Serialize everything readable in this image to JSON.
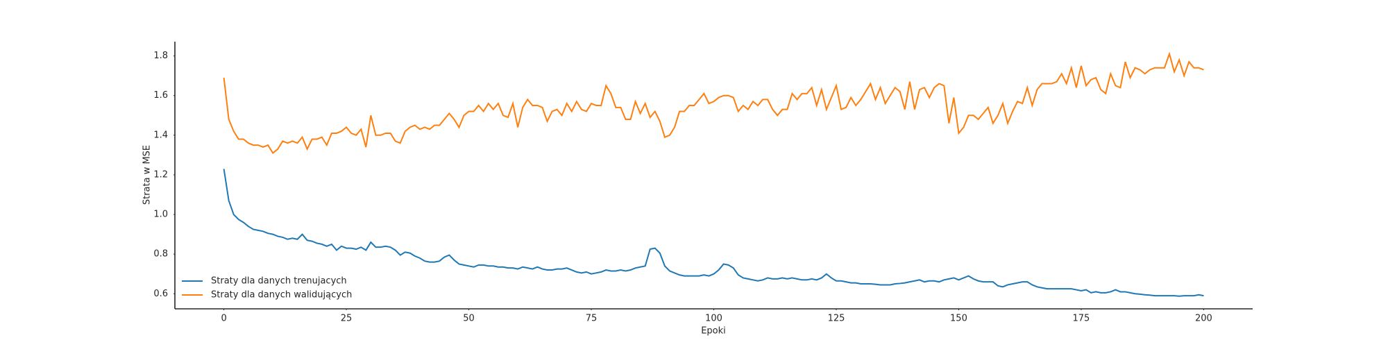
{
  "chart_data": {
    "type": "line",
    "xlabel": "Epoki",
    "ylabel": "Strata w MSE",
    "x": [
      0,
      1,
      2,
      3,
      4,
      5,
      6,
      7,
      8,
      9,
      10,
      11,
      12,
      13,
      14,
      15,
      16,
      17,
      18,
      19,
      20,
      21,
      22,
      23,
      24,
      25,
      26,
      27,
      28,
      29,
      30,
      31,
      32,
      33,
      34,
      35,
      36,
      37,
      38,
      39,
      40,
      41,
      42,
      43,
      44,
      45,
      46,
      47,
      48,
      49,
      50,
      51,
      52,
      53,
      54,
      55,
      56,
      57,
      58,
      59,
      60,
      61,
      62,
      63,
      64,
      65,
      66,
      67,
      68,
      69,
      70,
      71,
      72,
      73,
      74,
      75,
      76,
      77,
      78,
      79,
      80,
      81,
      82,
      83,
      84,
      85,
      86,
      87,
      88,
      89,
      90,
      91,
      92,
      93,
      94,
      95,
      96,
      97,
      98,
      99,
      100,
      101,
      102,
      103,
      104,
      105,
      106,
      107,
      108,
      109,
      110,
      111,
      112,
      113,
      114,
      115,
      116,
      117,
      118,
      119,
      120,
      121,
      122,
      123,
      124,
      125,
      126,
      127,
      128,
      129,
      130,
      131,
      132,
      133,
      134,
      135,
      136,
      137,
      138,
      139,
      140,
      141,
      142,
      143,
      144,
      145,
      146,
      147,
      148,
      149,
      150,
      151,
      152,
      153,
      154,
      155,
      156,
      157,
      158,
      159,
      160,
      161,
      162,
      163,
      164,
      165,
      166,
      167,
      168,
      169,
      170,
      171,
      172,
      173,
      174,
      175,
      176,
      177,
      178,
      179,
      180,
      181,
      182,
      183,
      184,
      185,
      186,
      187,
      188,
      189,
      190,
      191,
      192,
      193,
      194,
      195,
      196,
      197,
      198,
      199,
      200
    ],
    "series": [
      {
        "name": "Straty dla danych trenujacych",
        "color": "#1f77b4",
        "values": [
          1.23,
          1.07,
          1.0,
          0.975,
          0.96,
          0.94,
          0.925,
          0.92,
          0.915,
          0.905,
          0.9,
          0.89,
          0.885,
          0.875,
          0.88,
          0.875,
          0.9,
          0.87,
          0.865,
          0.855,
          0.85,
          0.84,
          0.85,
          0.82,
          0.84,
          0.83,
          0.83,
          0.825,
          0.835,
          0.82,
          0.86,
          0.835,
          0.835,
          0.84,
          0.835,
          0.82,
          0.795,
          0.81,
          0.805,
          0.79,
          0.78,
          0.765,
          0.76,
          0.76,
          0.765,
          0.785,
          0.795,
          0.77,
          0.75,
          0.745,
          0.74,
          0.735,
          0.745,
          0.745,
          0.74,
          0.74,
          0.735,
          0.735,
          0.73,
          0.73,
          0.725,
          0.735,
          0.73,
          0.725,
          0.735,
          0.725,
          0.72,
          0.72,
          0.725,
          0.725,
          0.73,
          0.72,
          0.71,
          0.705,
          0.71,
          0.7,
          0.705,
          0.71,
          0.72,
          0.715,
          0.715,
          0.72,
          0.715,
          0.72,
          0.73,
          0.735,
          0.74,
          0.825,
          0.83,
          0.805,
          0.74,
          0.715,
          0.705,
          0.695,
          0.69,
          0.69,
          0.69,
          0.69,
          0.695,
          0.69,
          0.7,
          0.72,
          0.75,
          0.745,
          0.73,
          0.695,
          0.68,
          0.675,
          0.67,
          0.665,
          0.67,
          0.68,
          0.675,
          0.675,
          0.68,
          0.675,
          0.68,
          0.675,
          0.67,
          0.67,
          0.675,
          0.67,
          0.68,
          0.7,
          0.68,
          0.665,
          0.665,
          0.66,
          0.655,
          0.655,
          0.65,
          0.65,
          0.65,
          0.648,
          0.645,
          0.645,
          0.645,
          0.65,
          0.652,
          0.655,
          0.66,
          0.665,
          0.67,
          0.66,
          0.665,
          0.665,
          0.66,
          0.67,
          0.675,
          0.68,
          0.67,
          0.68,
          0.69,
          0.675,
          0.665,
          0.66,
          0.66,
          0.66,
          0.64,
          0.635,
          0.645,
          0.65,
          0.655,
          0.66,
          0.66,
          0.645,
          0.635,
          0.63,
          0.625,
          0.625,
          0.625,
          0.625,
          0.625,
          0.625,
          0.62,
          0.615,
          0.62,
          0.605,
          0.61,
          0.605,
          0.605,
          0.61,
          0.62,
          0.61,
          0.61,
          0.605,
          0.6,
          0.598,
          0.595,
          0.593,
          0.59,
          0.59,
          0.59,
          0.59,
          0.59,
          0.588,
          0.59,
          0.59,
          0.59,
          0.595,
          0.59
        ]
      },
      {
        "name": "Straty dla danych walidujących",
        "color": "#ff7f0e",
        "values": [
          1.69,
          1.48,
          1.42,
          1.38,
          1.38,
          1.36,
          1.35,
          1.35,
          1.34,
          1.35,
          1.31,
          1.33,
          1.37,
          1.36,
          1.37,
          1.36,
          1.39,
          1.33,
          1.38,
          1.38,
          1.39,
          1.35,
          1.41,
          1.41,
          1.42,
          1.44,
          1.41,
          1.4,
          1.43,
          1.34,
          1.5,
          1.4,
          1.4,
          1.41,
          1.41,
          1.37,
          1.36,
          1.42,
          1.44,
          1.45,
          1.43,
          1.44,
          1.43,
          1.45,
          1.45,
          1.48,
          1.51,
          1.48,
          1.44,
          1.5,
          1.52,
          1.52,
          1.55,
          1.52,
          1.56,
          1.53,
          1.56,
          1.5,
          1.49,
          1.56,
          1.44,
          1.54,
          1.58,
          1.55,
          1.55,
          1.54,
          1.47,
          1.52,
          1.53,
          1.5,
          1.56,
          1.52,
          1.57,
          1.53,
          1.52,
          1.56,
          1.55,
          1.55,
          1.65,
          1.61,
          1.54,
          1.54,
          1.48,
          1.48,
          1.57,
          1.51,
          1.56,
          1.49,
          1.52,
          1.47,
          1.39,
          1.4,
          1.44,
          1.52,
          1.52,
          1.55,
          1.55,
          1.58,
          1.61,
          1.56,
          1.57,
          1.59,
          1.6,
          1.6,
          1.59,
          1.52,
          1.55,
          1.53,
          1.57,
          1.55,
          1.58,
          1.58,
          1.53,
          1.5,
          1.53,
          1.53,
          1.61,
          1.58,
          1.61,
          1.61,
          1.64,
          1.55,
          1.63,
          1.53,
          1.59,
          1.65,
          1.53,
          1.54,
          1.59,
          1.55,
          1.58,
          1.62,
          1.66,
          1.58,
          1.64,
          1.56,
          1.6,
          1.64,
          1.62,
          1.53,
          1.67,
          1.53,
          1.63,
          1.64,
          1.59,
          1.64,
          1.66,
          1.65,
          1.46,
          1.59,
          1.41,
          1.44,
          1.5,
          1.5,
          1.48,
          1.51,
          1.54,
          1.46,
          1.5,
          1.56,
          1.46,
          1.52,
          1.57,
          1.56,
          1.64,
          1.55,
          1.63,
          1.66,
          1.66,
          1.66,
          1.67,
          1.71,
          1.66,
          1.74,
          1.64,
          1.75,
          1.65,
          1.68,
          1.69,
          1.63,
          1.61,
          1.71,
          1.65,
          1.64,
          1.77,
          1.69,
          1.74,
          1.73,
          1.71,
          1.73,
          1.74,
          1.74,
          1.74,
          1.81,
          1.72,
          1.78,
          1.7,
          1.77,
          1.74,
          1.74,
          1.73
        ]
      }
    ],
    "xlim": [
      -10,
      210
    ],
    "xticks": [
      0,
      25,
      50,
      75,
      100,
      125,
      150,
      175,
      200
    ],
    "ylim": [
      0.524,
      1.872
    ],
    "yticks": [
      0.6,
      0.8,
      {
        "value": 1,
        "label": "1.0"
      },
      1.2,
      1.4,
      1.6,
      1.8
    ],
    "grid": false,
    "legend": "lower left"
  }
}
